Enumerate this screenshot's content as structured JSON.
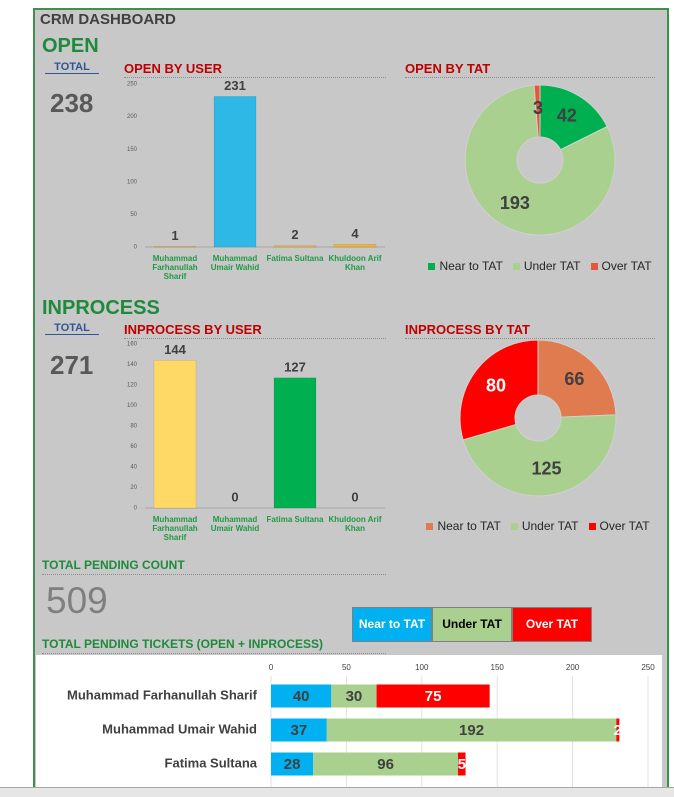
{
  "title": "CRM DASHBOARD",
  "open": {
    "heading": "OPEN",
    "total_label": "TOTAL",
    "total": 238
  },
  "inprocess": {
    "heading": "INPROCESS",
    "total_label": "TOTAL",
    "total": 271
  },
  "pending": {
    "heading": "TOTAL PENDING COUNT",
    "total": 509
  },
  "chart_data": [
    {
      "type": "bar",
      "title": "OPEN BY USER",
      "categories": [
        "Muhammad Farhanullah Sharif",
        "Muhammad Umair Wahid",
        "Fatima Sultana",
        "Khuldoon Arif Khan"
      ],
      "values": [
        1,
        231,
        2,
        4
      ],
      "colors": [
        "#f2b134",
        "#2eb8e6",
        "#f2b134",
        "#f2b134"
      ],
      "ylim": [
        0,
        250
      ],
      "yticks": [
        0,
        50,
        100,
        150,
        200,
        250
      ]
    },
    {
      "type": "donut",
      "title": "OPEN BY TAT",
      "categories": [
        "Near to TAT",
        "Under TAT",
        "Over TAT"
      ],
      "values": [
        42,
        193,
        3
      ],
      "colors": [
        "#00b050",
        "#a9d08e",
        "#e8553a"
      ],
      "legend": "bottom"
    },
    {
      "type": "bar",
      "title": "INPROCESS BY USER",
      "categories": [
        "Muhammad Farhanullah Sharif",
        "Muhammad Umair Wahid",
        "Fatima Sultana",
        "Khuldoon Arif Khan"
      ],
      "values": [
        144,
        0,
        127,
        0
      ],
      "colors": [
        "#ffd966",
        "#2eb8e6",
        "#00b050",
        "#f2b134"
      ],
      "ylim": [
        0,
        160
      ],
      "yticks": [
        0,
        20,
        40,
        60,
        80,
        100,
        120,
        140,
        160
      ]
    },
    {
      "type": "donut",
      "title": "INPROCESS BY TAT",
      "categories": [
        "Near to TAT",
        "Under TAT",
        "Over TAT"
      ],
      "values": [
        66,
        125,
        80
      ],
      "colors": [
        "#e07b4f",
        "#a9d08e",
        "#ff0000"
      ],
      "legend": "bottom"
    },
    {
      "type": "hbar-stacked",
      "title": "TOTAL PENDING TICKETS (OPEN + INPROCESS)",
      "categories": [
        "Muhammad Farhanullah Sharif",
        "Muhammad Umair Wahid",
        "Fatima Sultana"
      ],
      "series": [
        {
          "name": "Near to TAT",
          "color": "#00b0f0",
          "values": [
            40,
            37,
            28
          ]
        },
        {
          "name": "Under TAT",
          "color": "#a9d08e",
          "values": [
            30,
            192,
            96
          ]
        },
        {
          "name": "Over TAT",
          "color": "#ff0000",
          "values": [
            75,
            2,
            5
          ]
        }
      ],
      "xlim": [
        0,
        250
      ],
      "xticks": [
        0,
        50,
        100,
        150,
        200,
        250
      ],
      "grid": true
    }
  ]
}
